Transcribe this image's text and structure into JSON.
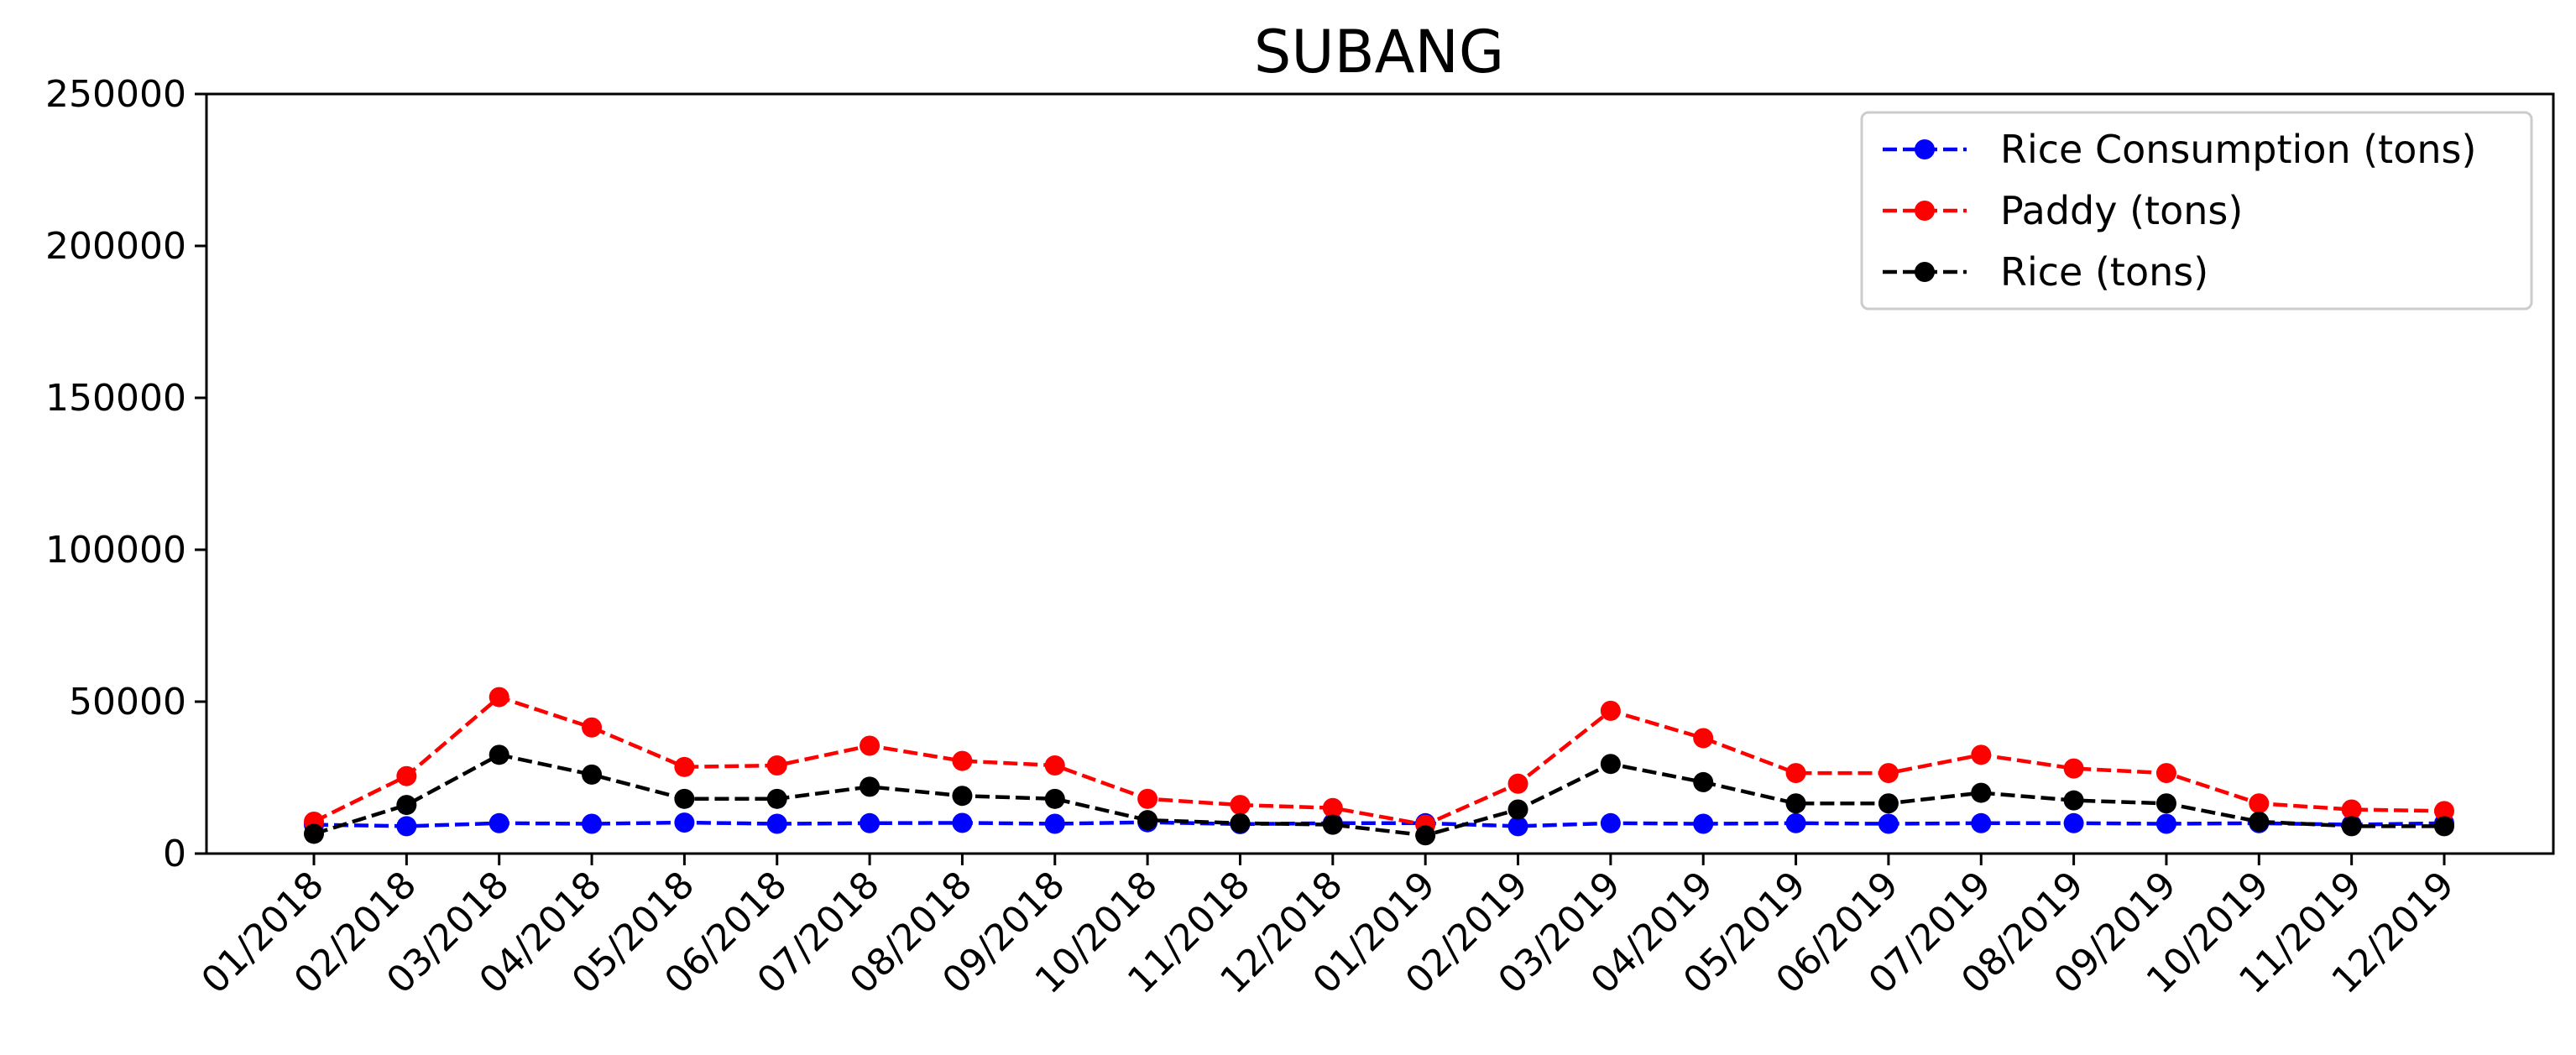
{
  "chart_data": {
    "type": "line",
    "title": "SUBANG",
    "xlabel": "",
    "ylabel": "",
    "ylim": [
      0,
      250000
    ],
    "yticks": [
      0,
      50000,
      100000,
      150000,
      200000,
      250000
    ],
    "ytick_labels": [
      "0",
      "50000",
      "100000",
      "150000",
      "200000",
      "250000"
    ],
    "categories": [
      "01/2018",
      "02/2018",
      "03/2018",
      "04/2018",
      "05/2018",
      "06/2018",
      "07/2018",
      "08/2018",
      "09/2018",
      "10/2018",
      "11/2018",
      "12/2018",
      "01/2019",
      "02/2019",
      "03/2019",
      "04/2019",
      "05/2019",
      "06/2019",
      "07/2019",
      "08/2019",
      "09/2019",
      "10/2019",
      "11/2019",
      "12/2019"
    ],
    "grid": false,
    "legend_position": "top-right",
    "series": [
      {
        "name": "Rice Consumption (tons)",
        "color": "#0000ff",
        "line_style": "dashed",
        "marker": "circle",
        "values": [
          9500,
          9000,
          10000,
          9800,
          10200,
          9800,
          10000,
          10100,
          9800,
          10300,
          9700,
          10000,
          10000,
          9000,
          10000,
          9800,
          10000,
          9800,
          10000,
          10000,
          9800,
          10000,
          9500,
          10000
        ]
      },
      {
        "name": "Paddy (tons)",
        "color": "#ff0000",
        "line_style": "dashed",
        "marker": "circle",
        "values": [
          10500,
          25500,
          51500,
          41500,
          28500,
          29000,
          35500,
          30500,
          29000,
          18000,
          16000,
          15000,
          9500,
          23000,
          47000,
          38000,
          26500,
          26500,
          32500,
          28000,
          26500,
          16500,
          14500,
          14000
        ]
      },
      {
        "name": "Rice (tons)",
        "color": "#000000",
        "line_style": "dashed",
        "marker": "circle",
        "values": [
          6500,
          16000,
          32500,
          26000,
          18000,
          18000,
          22000,
          19000,
          18000,
          11000,
          10000,
          9500,
          6000,
          14500,
          29500,
          23500,
          16500,
          16500,
          20000,
          17500,
          16500,
          10500,
          9000,
          9000
        ]
      }
    ]
  }
}
